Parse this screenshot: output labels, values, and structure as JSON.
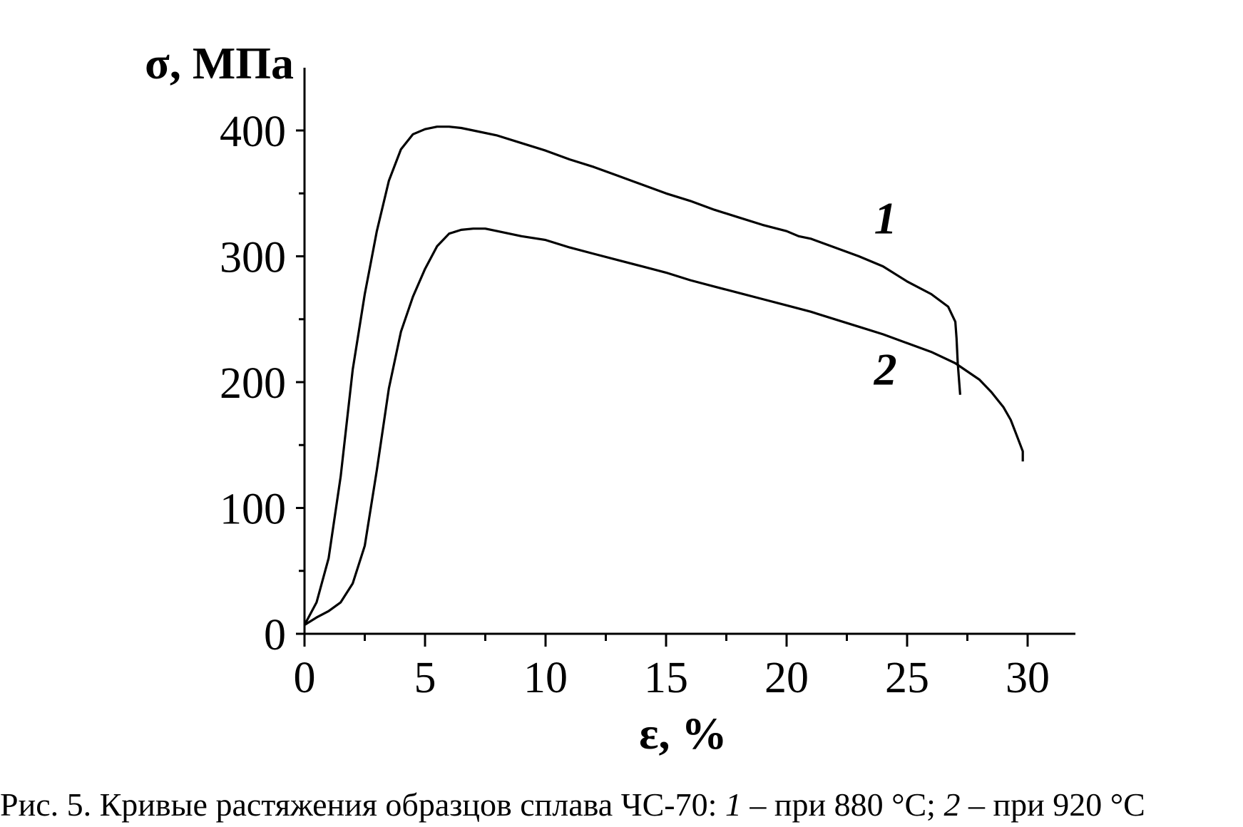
{
  "chart_data": {
    "type": "line",
    "xlabel": "ε, %",
    "ylabel": "σ, МПа",
    "xlim": [
      0,
      32
    ],
    "ylim": [
      0,
      450
    ],
    "xticks": [
      0,
      5,
      10,
      15,
      20,
      25,
      30
    ],
    "yticks": [
      0,
      100,
      200,
      300,
      400
    ],
    "grid": false,
    "series": [
      {
        "name": "1",
        "x": [
          0,
          0.5,
          1,
          1.5,
          2,
          2.5,
          2.7,
          3,
          3.5,
          4,
          4.5,
          5,
          5.5,
          6,
          6.5,
          7,
          8,
          9,
          10,
          11,
          12,
          13,
          14,
          15,
          16,
          17,
          18,
          19,
          20,
          20.5,
          21,
          22,
          23,
          24,
          24.5,
          25,
          26,
          26.7,
          27,
          27.05,
          27.1,
          27.2
        ],
        "y": [
          7,
          25,
          60,
          125,
          210,
          270,
          290,
          320,
          360,
          385,
          397,
          401,
          403,
          403,
          402,
          400,
          396,
          390,
          384,
          377,
          371,
          364,
          357,
          350,
          344,
          337,
          331,
          325,
          320,
          316,
          314,
          307,
          300,
          292,
          286,
          280,
          270,
          260,
          248,
          235,
          215,
          190
        ]
      },
      {
        "name": "2",
        "x": [
          0,
          0.5,
          1,
          1.5,
          2,
          2.5,
          3,
          3.5,
          4,
          4.5,
          5,
          5.5,
          6,
          6.5,
          7,
          7.5,
          8,
          9,
          10,
          11,
          12,
          13,
          14,
          15,
          16,
          17,
          18,
          19,
          20,
          21,
          22,
          23,
          24,
          25,
          26,
          27,
          28,
          28.5,
          29,
          29.3,
          29.5,
          29.7,
          29.8,
          29.8
        ],
        "y": [
          7,
          13,
          18,
          25,
          40,
          70,
          130,
          195,
          240,
          268,
          290,
          308,
          318,
          321,
          322,
          322,
          320,
          316,
          313,
          307,
          302,
          297,
          292,
          287,
          281,
          276,
          271,
          266,
          261,
          256,
          250,
          244,
          238,
          231,
          224,
          215,
          202,
          192,
          180,
          170,
          160,
          150,
          145,
          137
        ]
      }
    ],
    "annotations": [
      {
        "text": "1",
        "x": 24.1,
        "y": 318
      },
      {
        "text": "2",
        "x": 24.1,
        "y": 198
      }
    ]
  },
  "caption": {
    "prefix": "Рис. 5. Кривые растяжения образцов сплава ЧС-70: ",
    "num1": "1",
    "mid": " – при 880 °C; ",
    "num2": "2",
    "suffix": " – при 920 °C"
  }
}
